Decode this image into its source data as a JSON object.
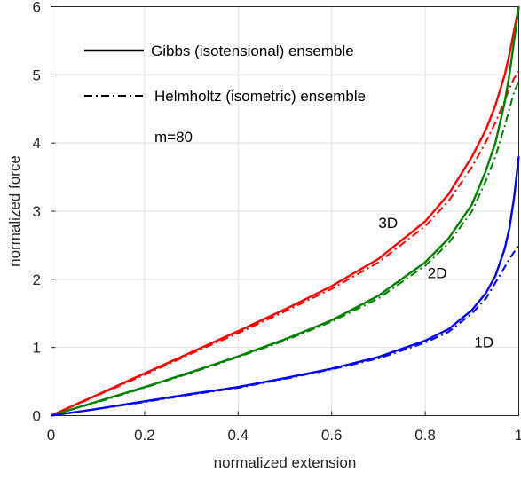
{
  "chart_data": {
    "type": "line",
    "xlabel": "normalized extension",
    "ylabel": "normalized force",
    "xlim": [
      0,
      1
    ],
    "ylim": [
      0,
      6
    ],
    "grid": true,
    "x_ticks": [
      "0",
      "0.2",
      "0.4",
      "0.6",
      "0.8",
      "1"
    ],
    "y_ticks": [
      "0",
      "1",
      "2",
      "3",
      "4",
      "5",
      "6"
    ],
    "legend": {
      "placement": "top-left",
      "entries": [
        {
          "label": "Gibbs (isotensional) ensemble",
          "style": "solid"
        },
        {
          "label": "Helmholtz (isometric) ensemble",
          "style": "dashdot"
        }
      ],
      "note": "m=80"
    },
    "colors": {
      "1D": "#0000ff",
      "2D": "#008000",
      "3D": "#ff0000"
    },
    "series": [
      {
        "name": "3D",
        "ensemble": "Gibbs",
        "color": "#ff0000",
        "style": "solid",
        "x": [
          0,
          0.1,
          0.2,
          0.3,
          0.4,
          0.5,
          0.6,
          0.7,
          0.8,
          0.85,
          0.9,
          0.93,
          0.95,
          0.97,
          0.98,
          0.99,
          1.0
        ],
        "y": [
          0,
          0.31,
          0.62,
          0.93,
          1.24,
          1.56,
          1.9,
          2.3,
          2.85,
          3.25,
          3.8,
          4.2,
          4.55,
          5.0,
          5.3,
          5.65,
          6.0
        ]
      },
      {
        "name": "3D",
        "ensemble": "Helmholtz",
        "color": "#ff0000",
        "style": "dashdot",
        "x": [
          0,
          0.1,
          0.2,
          0.3,
          0.4,
          0.5,
          0.6,
          0.7,
          0.8,
          0.85,
          0.9,
          0.93,
          0.95,
          0.97,
          0.98,
          0.99,
          1.0
        ],
        "y": [
          0,
          0.3,
          0.6,
          0.91,
          1.21,
          1.53,
          1.86,
          2.25,
          2.78,
          3.15,
          3.65,
          4.02,
          4.3,
          4.62,
          4.8,
          4.95,
          5.05
        ]
      },
      {
        "name": "2D",
        "ensemble": "Gibbs",
        "color": "#008000",
        "style": "solid",
        "x": [
          0,
          0.1,
          0.2,
          0.3,
          0.4,
          0.5,
          0.6,
          0.7,
          0.8,
          0.85,
          0.9,
          0.93,
          0.95,
          0.97,
          0.98,
          0.99,
          1.0
        ],
        "y": [
          0,
          0.21,
          0.42,
          0.64,
          0.87,
          1.12,
          1.4,
          1.76,
          2.25,
          2.6,
          3.1,
          3.6,
          4.0,
          4.6,
          5.0,
          5.5,
          6.0
        ]
      },
      {
        "name": "2D",
        "ensemble": "Helmholtz",
        "color": "#008000",
        "style": "dashdot",
        "x": [
          0,
          0.1,
          0.2,
          0.3,
          0.4,
          0.5,
          0.6,
          0.7,
          0.8,
          0.85,
          0.9,
          0.93,
          0.95,
          0.97,
          0.98,
          0.99,
          1.0
        ],
        "y": [
          0,
          0.2,
          0.41,
          0.63,
          0.86,
          1.1,
          1.38,
          1.72,
          2.2,
          2.53,
          3.0,
          3.45,
          3.8,
          4.25,
          4.5,
          4.75,
          4.9
        ]
      },
      {
        "name": "1D",
        "ensemble": "Gibbs",
        "color": "#0000ff",
        "style": "solid",
        "x": [
          0,
          0.1,
          0.2,
          0.3,
          0.4,
          0.5,
          0.6,
          0.7,
          0.8,
          0.85,
          0.9,
          0.93,
          0.95,
          0.97,
          0.98,
          0.99,
          1.0
        ],
        "y": [
          0,
          0.1,
          0.21,
          0.32,
          0.42,
          0.55,
          0.69,
          0.86,
          1.1,
          1.27,
          1.55,
          1.8,
          2.05,
          2.45,
          2.75,
          3.2,
          3.8
        ]
      },
      {
        "name": "1D",
        "ensemble": "Helmholtz",
        "color": "#0000ff",
        "style": "dashdot",
        "x": [
          0,
          0.1,
          0.2,
          0.3,
          0.4,
          0.5,
          0.6,
          0.7,
          0.8,
          0.85,
          0.9,
          0.93,
          0.95,
          0.97,
          0.98,
          0.99,
          1.0
        ],
        "y": [
          0,
          0.1,
          0.2,
          0.31,
          0.41,
          0.54,
          0.68,
          0.84,
          1.07,
          1.23,
          1.5,
          1.72,
          1.95,
          2.18,
          2.3,
          2.4,
          2.5
        ]
      }
    ],
    "annotations": [
      {
        "text": "3D",
        "x": 0.7,
        "y": 2.75
      },
      {
        "text": "2D",
        "x": 0.805,
        "y": 2.02
      },
      {
        "text": "1D",
        "x": 0.905,
        "y": 1.0
      }
    ]
  }
}
